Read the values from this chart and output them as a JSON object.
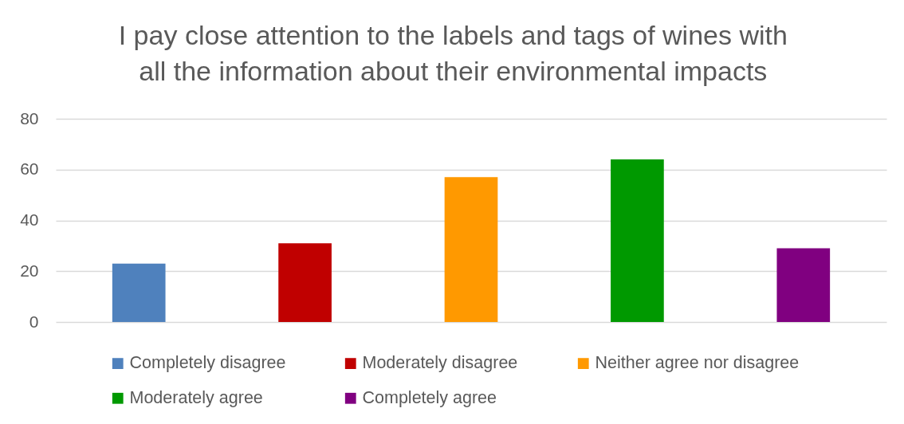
{
  "chart_data": {
    "type": "bar",
    "title": "I pay close attention to the labels and tags of wines with all the information about their environmental impacts",
    "categories": [
      null
    ],
    "series": [
      {
        "name": "Completely disagree",
        "color": "#4f81bd",
        "values": [
          23
        ]
      },
      {
        "name": "Moderately disagree",
        "color": "#c00000",
        "values": [
          31
        ]
      },
      {
        "name": "Neither agree nor disagree",
        "color": "#ff9900",
        "values": [
          57
        ]
      },
      {
        "name": "Moderately agree",
        "color": "#009900",
        "values": [
          64
        ]
      },
      {
        "name": "Completely agree",
        "color": "#800080",
        "values": [
          29
        ]
      }
    ],
    "ylim": [
      0,
      80
    ],
    "yticks": [
      0,
      20,
      40,
      60,
      80
    ],
    "grid": "y",
    "legend": "bottom",
    "tick_labels": "y"
  }
}
